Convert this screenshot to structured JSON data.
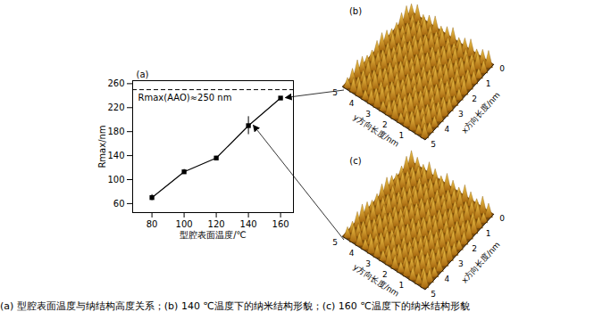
{
  "chart_data": {
    "type": "line",
    "title": "(a)",
    "x": [
      80,
      100,
      120,
      140,
      160
    ],
    "values": [
      70,
      113,
      136,
      190,
      236
    ],
    "errors": [
      5,
      4,
      3,
      15,
      2
    ],
    "color": "#000000",
    "marker": "square",
    "xlabel": "型腔表面温度/℃",
    "ylabel": "Rmax/nm",
    "xlim": [
      68,
      168
    ],
    "xticks": [
      80,
      100,
      120,
      140,
      160
    ],
    "ylim": [
      45,
      265
    ],
    "yticks": [
      60,
      100,
      140,
      180,
      220,
      260
    ],
    "annotations": [
      {
        "text": "Rmax(AAO)≈250 nm",
        "y": 250,
        "line_style": "dashed"
      }
    ]
  },
  "panels": [
    {
      "label": "(b)",
      "xlabel": "x方向长度/nm",
      "ylabel": "y方向长度/nm",
      "xticks": [
        0,
        1,
        2,
        3,
        4,
        5
      ],
      "yticks": [
        5,
        4,
        3,
        2,
        1
      ]
    },
    {
      "label": "(c)",
      "xlabel": "x方向长度/nm",
      "ylabel": "y方向长度/nm",
      "xticks": [
        0,
        1,
        2,
        3,
        4,
        5
      ],
      "yticks": [
        5,
        4,
        3,
        2,
        1
      ]
    }
  ],
  "caption": "(a)  型腔表面温度与纳结构高度关系；(b) 140 ℃温度下的纳米结构形貌；(c) 160 ℃温度下的纳米结构形貌"
}
